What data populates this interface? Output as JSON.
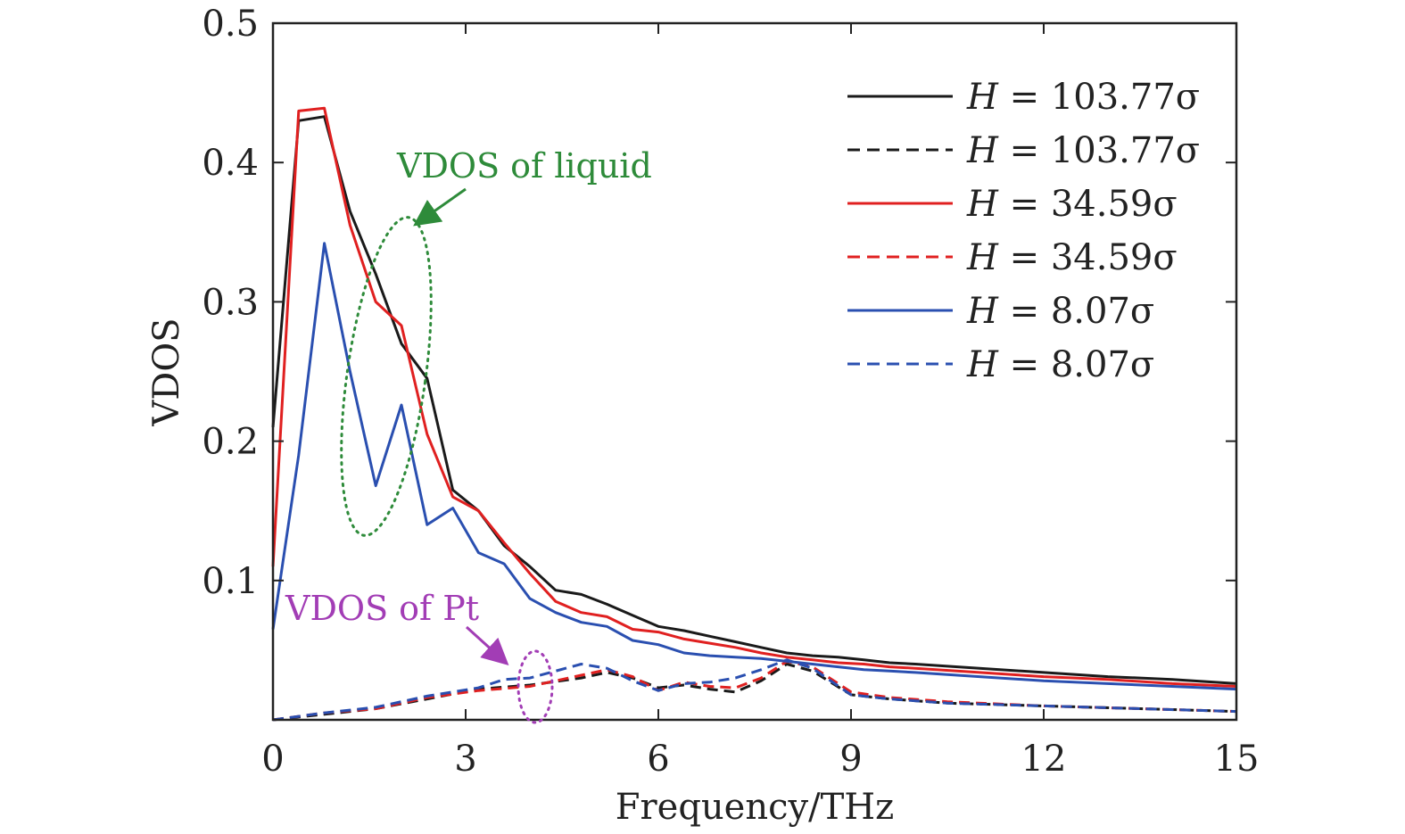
{
  "chart_data": {
    "type": "line",
    "title": "",
    "xlabel": "Frequency/THz",
    "ylabel": "VDOS",
    "xlim": [
      0,
      15
    ],
    "ylim": [
      0,
      0.5
    ],
    "xticks": [
      0,
      3,
      6,
      9,
      12,
      15
    ],
    "xtick_labels": [
      "0",
      "3",
      "6",
      "9",
      "12",
      "15"
    ],
    "yticks": [
      0.1,
      0.2,
      0.3,
      0.4,
      0.5
    ],
    "ytick_labels": [
      "0.1",
      "0.2",
      "0.3",
      "0.4",
      "0.5"
    ],
    "legend_position": "top-right",
    "series": [
      {
        "name": "H = 103.77σ",
        "legend_var": "H",
        "legend_value": "= 103.77σ",
        "color": "#1a1a1a",
        "style": "solid",
        "x": [
          0,
          0.4,
          0.8,
          1.2,
          1.6,
          2.0,
          2.4,
          2.8,
          3.2,
          3.6,
          4.0,
          4.4,
          4.8,
          5.2,
          5.6,
          6.0,
          6.4,
          6.8,
          7.2,
          7.6,
          8.0,
          8.4,
          8.8,
          9.2,
          9.6,
          10.0,
          11.0,
          12.0,
          13.0,
          14.0,
          15.0
        ],
        "y": [
          0.21,
          0.43,
          0.433,
          0.365,
          0.32,
          0.27,
          0.245,
          0.165,
          0.15,
          0.125,
          0.11,
          0.093,
          0.09,
          0.083,
          0.075,
          0.067,
          0.064,
          0.06,
          0.056,
          0.052,
          0.048,
          0.046,
          0.045,
          0.043,
          0.041,
          0.04,
          0.037,
          0.034,
          0.031,
          0.029,
          0.026
        ]
      },
      {
        "name": "H = 103.77σ",
        "legend_var": "H",
        "legend_value": "= 103.77σ",
        "color": "#1a1a1a",
        "style": "dashed",
        "x": [
          0,
          0.8,
          1.6,
          2.4,
          3.2,
          4.0,
          4.8,
          5.2,
          5.6,
          6.0,
          6.4,
          6.8,
          7.2,
          7.6,
          8.0,
          8.4,
          9.0,
          9.6,
          10.5,
          12.0,
          13.5,
          15.0
        ],
        "y": [
          0.0,
          0.004,
          0.008,
          0.015,
          0.022,
          0.025,
          0.03,
          0.034,
          0.03,
          0.023,
          0.025,
          0.022,
          0.02,
          0.028,
          0.04,
          0.035,
          0.018,
          0.015,
          0.012,
          0.01,
          0.008,
          0.006
        ]
      },
      {
        "name": "H = 34.59σ",
        "legend_var": "H",
        "legend_value": "= 34.59σ",
        "color": "#e02020",
        "style": "solid",
        "x": [
          0,
          0.4,
          0.8,
          1.2,
          1.6,
          2.0,
          2.4,
          2.8,
          3.2,
          3.6,
          4.0,
          4.4,
          4.8,
          5.2,
          5.6,
          6.0,
          6.4,
          6.8,
          7.2,
          7.6,
          8.0,
          8.4,
          8.8,
          9.2,
          9.6,
          10.0,
          11.0,
          12.0,
          13.0,
          14.0,
          15.0
        ],
        "y": [
          0.11,
          0.437,
          0.439,
          0.355,
          0.3,
          0.283,
          0.205,
          0.16,
          0.15,
          0.127,
          0.105,
          0.085,
          0.077,
          0.074,
          0.065,
          0.063,
          0.058,
          0.055,
          0.052,
          0.048,
          0.045,
          0.043,
          0.041,
          0.04,
          0.038,
          0.037,
          0.034,
          0.031,
          0.029,
          0.026,
          0.024
        ]
      },
      {
        "name": "H = 34.59σ",
        "legend_var": "H",
        "legend_value": "= 34.59σ",
        "color": "#e02020",
        "style": "dashed",
        "x": [
          0,
          0.8,
          1.6,
          2.4,
          3.2,
          4.0,
          4.8,
          5.2,
          5.6,
          6.0,
          6.4,
          6.8,
          7.2,
          7.6,
          8.0,
          8.4,
          9.0,
          9.6,
          10.5,
          12.0,
          13.5,
          15.0
        ],
        "y": [
          0.0,
          0.005,
          0.008,
          0.016,
          0.021,
          0.024,
          0.032,
          0.036,
          0.031,
          0.021,
          0.027,
          0.024,
          0.023,
          0.03,
          0.042,
          0.038,
          0.02,
          0.016,
          0.013,
          0.01,
          0.008,
          0.006
        ]
      },
      {
        "name": "H = 8.07σ",
        "legend_var": "H",
        "legend_value": "= 8.07σ",
        "color": "#2a4fb0",
        "style": "solid",
        "x": [
          0,
          0.4,
          0.8,
          1.2,
          1.6,
          2.0,
          2.4,
          2.8,
          3.2,
          3.6,
          4.0,
          4.4,
          4.8,
          5.2,
          5.6,
          6.0,
          6.4,
          6.8,
          7.2,
          7.6,
          8.0,
          8.4,
          8.8,
          9.2,
          9.6,
          10.0,
          11.0,
          12.0,
          13.0,
          14.0,
          15.0
        ],
        "y": [
          0.065,
          0.19,
          0.342,
          0.25,
          0.168,
          0.226,
          0.14,
          0.152,
          0.12,
          0.112,
          0.087,
          0.077,
          0.07,
          0.067,
          0.057,
          0.054,
          0.048,
          0.046,
          0.045,
          0.044,
          0.042,
          0.04,
          0.038,
          0.036,
          0.035,
          0.034,
          0.031,
          0.028,
          0.026,
          0.024,
          0.022
        ]
      },
      {
        "name": "H = 8.07σ",
        "legend_var": "H",
        "legend_value": "= 8.07σ",
        "color": "#2a4fb0",
        "style": "dashed",
        "x": [
          0,
          0.8,
          1.6,
          2.4,
          3.2,
          3.6,
          4.0,
          4.4,
          4.8,
          5.2,
          5.6,
          6.0,
          6.4,
          6.8,
          7.2,
          7.6,
          8.0,
          8.4,
          9.0,
          9.6,
          10.5,
          12.0,
          13.5,
          15.0
        ],
        "y": [
          0.0,
          0.005,
          0.009,
          0.017,
          0.023,
          0.029,
          0.03,
          0.035,
          0.04,
          0.037,
          0.028,
          0.021,
          0.026,
          0.027,
          0.03,
          0.036,
          0.043,
          0.037,
          0.018,
          0.015,
          0.012,
          0.01,
          0.008,
          0.006
        ]
      }
    ],
    "annotations": [
      {
        "text": "VDOS of liquid",
        "color": "#2e8b3a"
      },
      {
        "text": "VDOS of Pt",
        "color": "#a23db5"
      }
    ]
  }
}
